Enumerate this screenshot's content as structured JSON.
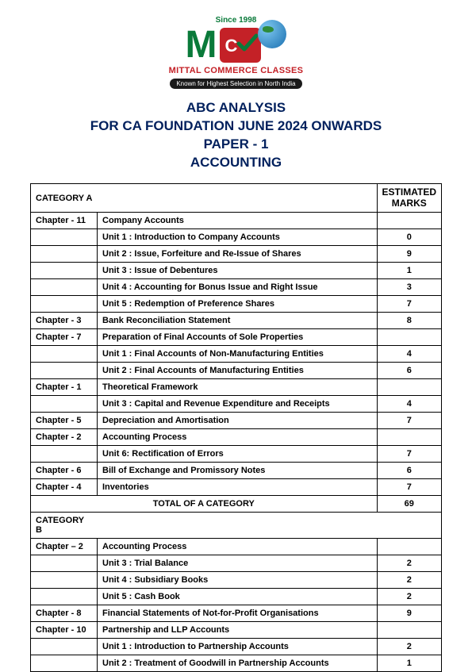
{
  "logo": {
    "since": "Since 1998",
    "brand": "MITTAL COMMERCE CLASSES",
    "tagline": "Known for Highest Selection in North India",
    "color_green": "#0a7a3a",
    "color_red": "#c42127",
    "color_navy": "#01205d"
  },
  "title": {
    "line1": "ABC ANALYSIS",
    "line2": "FOR CA FOUNDATION JUNE 2024 ONWARDS",
    "line3": "PAPER - 1",
    "line4": "ACCOUNTING"
  },
  "headers": {
    "category_a": "CATEGORY A",
    "category_b": "CATEGORY B",
    "marks_head": "ESTIMATED MARKS"
  },
  "category_a": {
    "rows": [
      {
        "ch": "Chapter - 11",
        "desc": "Company Accounts",
        "marks": ""
      },
      {
        "ch": "",
        "desc": "Unit 1 : Introduction to Company Accounts",
        "marks": "0"
      },
      {
        "ch": "",
        "desc": "Unit 2 : Issue, Forfeiture and Re-Issue of Shares",
        "marks": "9"
      },
      {
        "ch": "",
        "desc": "Unit 3 : Issue of Debentures",
        "marks": "1"
      },
      {
        "ch": "",
        "desc": "Unit 4 :  Accounting for Bonus Issue and Right Issue",
        "marks": "3"
      },
      {
        "ch": "",
        "desc": "Unit 5 : Redemption of Preference Shares",
        "marks": "7"
      },
      {
        "ch": "Chapter - 3",
        "desc": "Bank Reconciliation Statement",
        "marks": "8"
      },
      {
        "ch": "Chapter - 7",
        "desc": "Preparation of Final Accounts of Sole Properties",
        "marks": ""
      },
      {
        "ch": "",
        "desc": "Unit 1 : Final Accounts of Non-Manufacturing Entities",
        "marks": "4"
      },
      {
        "ch": "",
        "desc": "Unit 2 : Final Accounts of Manufacturing Entities",
        "marks": "6"
      },
      {
        "ch": "Chapter - 1",
        "desc": "Theoretical Framework",
        "marks": ""
      },
      {
        "ch": "",
        "desc": "Unit 3 : Capital and Revenue Expenditure and Receipts",
        "marks": "4"
      },
      {
        "ch": "Chapter - 5",
        "desc": "Depreciation and Amortisation",
        "marks": "7"
      },
      {
        "ch": "Chapter - 2",
        "desc": "Accounting Process",
        "marks": ""
      },
      {
        "ch": "",
        "desc": "Unit 6: Rectification of Errors",
        "marks": "7"
      },
      {
        "ch": "Chapter - 6",
        "desc": "Bill of Exchange and Promissory Notes",
        "marks": "6"
      },
      {
        "ch": "Chapter - 4",
        "desc": "Inventories",
        "marks": "7"
      }
    ],
    "total_label": "TOTAL OF A CATEGORY",
    "total_value": "69"
  },
  "category_b": {
    "rows": [
      {
        "ch": "Chapter – 2",
        "desc": "Accounting Process",
        "marks": ""
      },
      {
        "ch": "",
        "desc": "Unit 3 : Trial Balance",
        "marks": "2"
      },
      {
        "ch": "",
        "desc": "Unit 4 : Subsidiary Books",
        "marks": "2"
      },
      {
        "ch": "",
        "desc": "Unit 5 : Cash Book",
        "marks": "2"
      },
      {
        "ch": "Chapter - 8",
        "desc": "Financial Statements of Not-for-Profit Organisations",
        "marks": "9"
      },
      {
        "ch": "Chapter - 10",
        "desc": "Partnership and LLP Accounts",
        "marks": ""
      },
      {
        "ch": "",
        "desc": "Unit 1 : Introduction to Partnership Accounts",
        "marks": "2"
      },
      {
        "ch": "",
        "desc": "Unit 2 : Treatment of Goodwill in Partnership Accounts",
        "marks": "1"
      }
    ]
  },
  "style": {
    "page_bg": "#ffffff",
    "border_color": "#000000",
    "text_color": "#000000",
    "row_fontsize": 11,
    "cat_fontsize": 13.5,
    "total_fontsize": 15
  }
}
